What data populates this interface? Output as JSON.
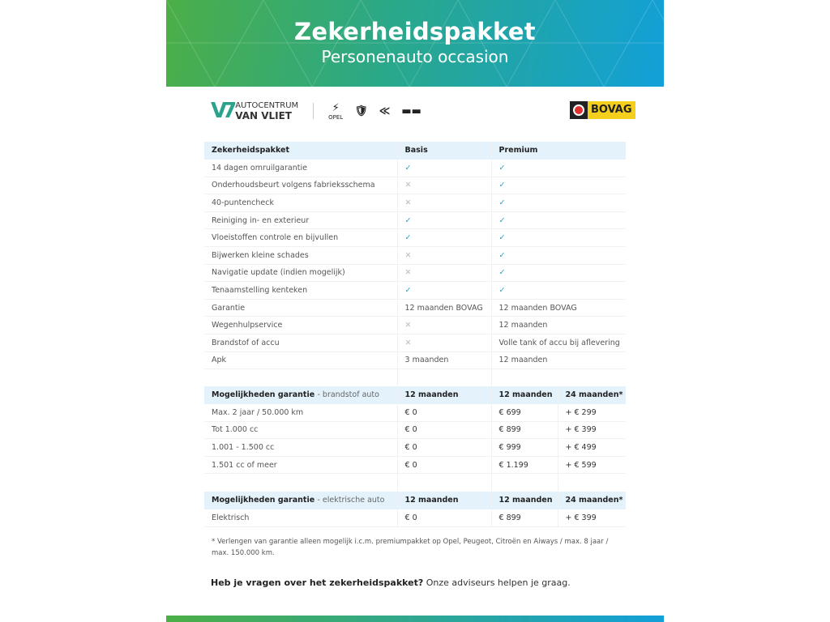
{
  "header": {
    "title": "Zekerheidspakket",
    "subtitle": "Personenauto occasion"
  },
  "logos": {
    "dealer_line1": "AUTOCENTRUM",
    "dealer_line2": "VAN VLIET",
    "brands": [
      "OPEL",
      "PEUGEOT",
      "CITROËN",
      "AIWAYS"
    ],
    "bovag": "BOVAG"
  },
  "package_table": {
    "headers": [
      "Zekerheidspakket",
      "Basis",
      "Premium"
    ],
    "rows": [
      {
        "label": "14 dagen omruilgarantie",
        "basis": "check",
        "premium": "check"
      },
      {
        "label": "Onderhoudsbeurt volgens fabrieksschema",
        "basis": "cross",
        "premium": "check"
      },
      {
        "label": "40-puntencheck",
        "basis": "cross",
        "premium": "check"
      },
      {
        "label": "Reiniging in- en exterieur",
        "basis": "check",
        "premium": "check"
      },
      {
        "label": "Vloeistoffen controle en bijvullen",
        "basis": "check",
        "premium": "check"
      },
      {
        "label": "Bijwerken kleine schades",
        "basis": "cross",
        "premium": "check"
      },
      {
        "label": "Navigatie update (indien mogelijk)",
        "basis": "cross",
        "premium": "check"
      },
      {
        "label": "Tenaamstelling kenteken",
        "basis": "check",
        "premium": "check"
      },
      {
        "label": "Garantie",
        "basis": "12 maanden BOVAG",
        "premium": "12 maanden BOVAG"
      },
      {
        "label": "Wegenhulpservice",
        "basis": "cross",
        "premium": "12 maanden"
      },
      {
        "label": "Brandstof of accu",
        "basis": "cross",
        "premium": "Volle tank of accu bij aflevering"
      },
      {
        "label": "Apk",
        "basis": "3 maanden",
        "premium": "12 maanden"
      }
    ]
  },
  "fuel_table": {
    "title": "Mogelijkheden garantie",
    "subtitle": "- brandstof auto",
    "headers": [
      "12 maanden",
      "12 maanden",
      "24 maanden*"
    ],
    "rows": [
      [
        "Max. 2 jaar / 50.000 km",
        "€ 0",
        "€ 699",
        "+ € 299"
      ],
      [
        "Tot 1.000 cc",
        "€ 0",
        "€ 899",
        "+ € 399"
      ],
      [
        "1.001 - 1.500 cc",
        "€ 0",
        "€ 999",
        "+ € 499"
      ],
      [
        "1.501 cc of meer",
        "€ 0",
        "€ 1.199",
        "+ € 599"
      ]
    ]
  },
  "electric_table": {
    "title": "Mogelijkheden garantie",
    "subtitle": "- elektrische auto",
    "headers": [
      "12 maanden",
      "12 maanden",
      "24 maanden*"
    ],
    "rows": [
      [
        "Elektrisch",
        "€ 0",
        "€ 899",
        "+ € 399"
      ]
    ]
  },
  "footnote": "* Verlengen van garantie alleen mogelijk i.c.m. premiumpakket op Opel, Peugeot, Citroën en Aiways / max. 8 jaar / max. 150.000 km.",
  "question": {
    "bold": "Heb je vragen over het zekerheidspakket?",
    "rest": " Onze adviseurs helpen je graag."
  },
  "icons": {
    "check": "✓",
    "cross": "✕"
  },
  "colors": {
    "accent_blue": "#16a3da",
    "green": "#4cae47",
    "header_row": "#e3f2fb"
  }
}
